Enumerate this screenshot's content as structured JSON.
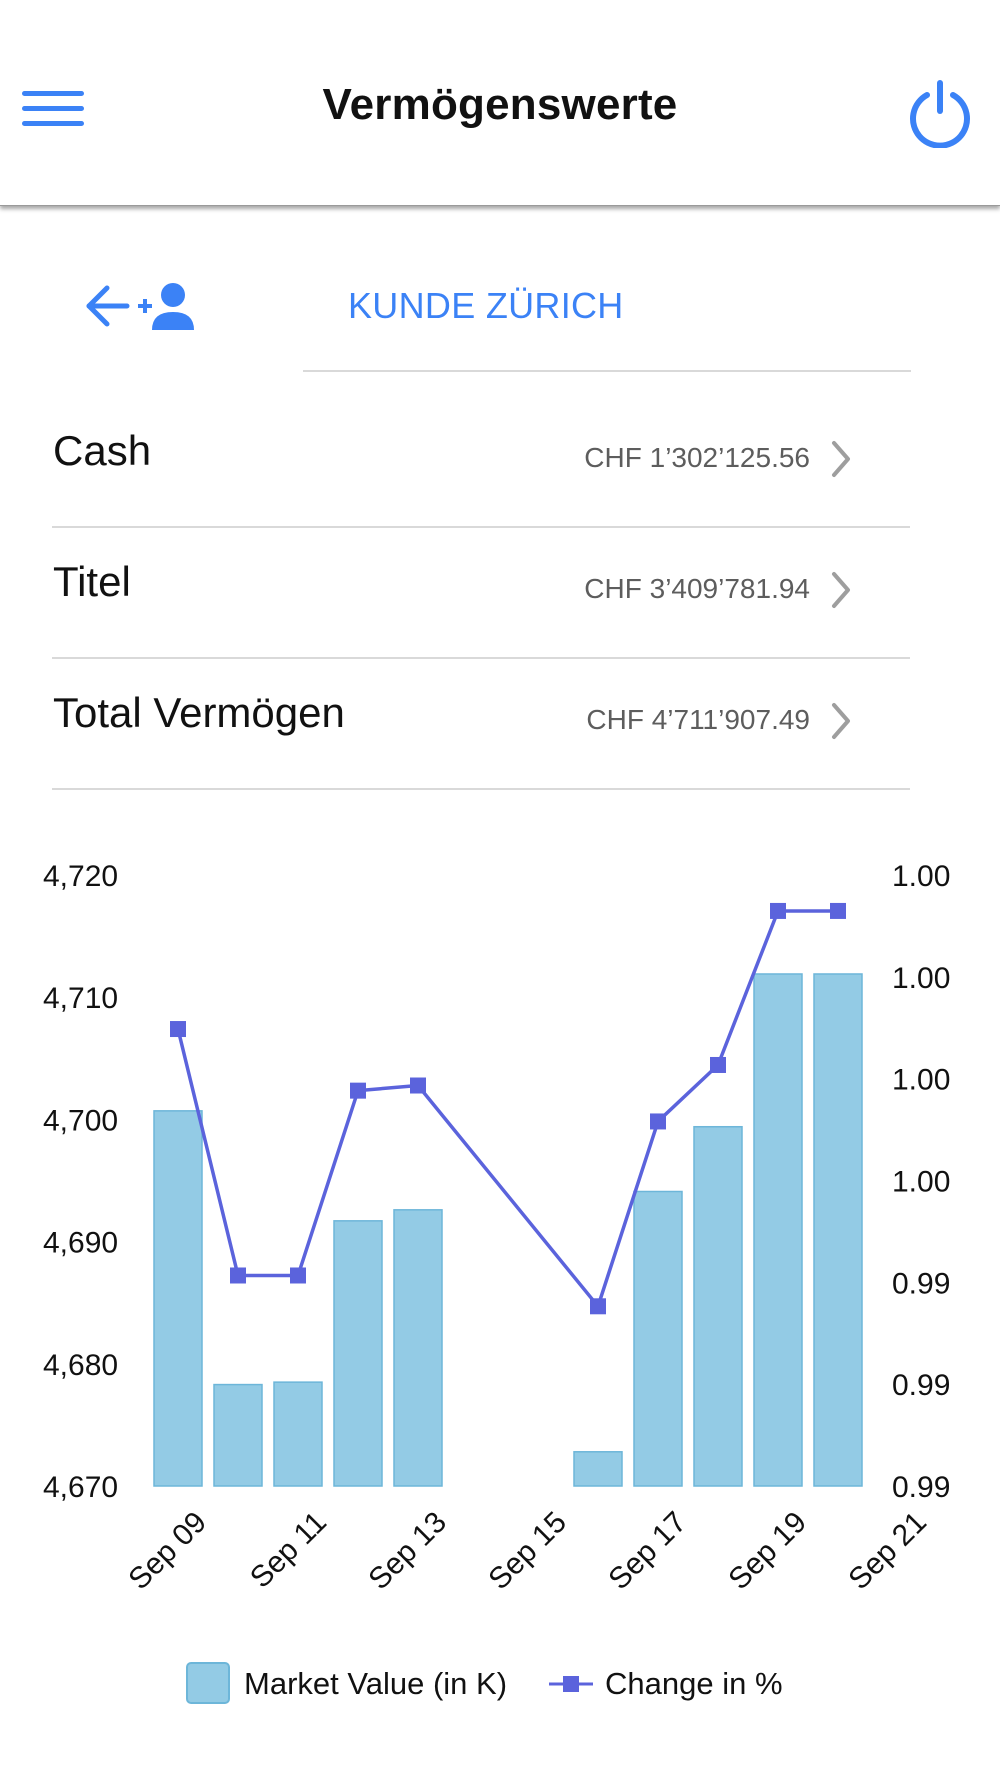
{
  "header": {
    "title": "Vermögenswerte"
  },
  "client": {
    "name": "KUNDE ZÜRICH"
  },
  "accounts": [
    {
      "label": "Cash",
      "value": "CHF 1’302’125.56"
    },
    {
      "label": "Titel",
      "value": "CHF 3’409’781.94"
    },
    {
      "label": "Total Vermögen",
      "value": "CHF 4’711’907.49"
    }
  ],
  "colors": {
    "accent": "#3b82f6",
    "bar_fill": "#93cbe5",
    "bar_stroke": "#6db6d9",
    "line": "#5b63dc"
  },
  "icons": {
    "menu": "hamburger-menu-icon",
    "power": "power-icon",
    "back": "arrow-left-icon",
    "add_user": "add-user-icon",
    "chevron": "chevron-right-icon"
  },
  "chart_data": {
    "type": "bar",
    "title": "",
    "x_tick_labels": [
      "Sep 09",
      "Sep 11",
      "Sep 13",
      "Sep 15",
      "Sep 17",
      "Sep 19",
      "Sep 21"
    ],
    "y_left": {
      "min": 4670,
      "max": 4720,
      "tick_labels": [
        "4,720",
        "4,710",
        "4,700",
        "4,690",
        "4,680",
        "4,670"
      ]
    },
    "y_right": {
      "tick_labels": [
        "1.00",
        "1.00",
        "1.00",
        "1.00",
        "0.99",
        "0.99",
        "0.99"
      ]
    },
    "legend": {
      "position": "bottom"
    },
    "series": [
      {
        "name": "Market Value (in K)",
        "type": "bar",
        "x": [
          "Sep 09",
          "Sep 10",
          "Sep 11",
          "Sep 12",
          "Sep 13",
          "Sep 16",
          "Sep 17",
          "Sep 18",
          "Sep 19",
          "Sep 20"
        ],
        "values": [
          4700.7,
          4678.3,
          4678.5,
          4691.7,
          4692.6,
          4672.8,
          4694.1,
          4699.4,
          4711.9,
          4711.9
        ]
      },
      {
        "name": "Change in %",
        "type": "line",
        "x": [
          "Sep 09",
          "Sep 10",
          "Sep 11",
          "Sep 12",
          "Sep 13",
          "Sep 16",
          "Sep 17",
          "Sep 18",
          "Sep 19",
          "Sep 20"
        ],
        "values": [
          0.9977,
          0.9929,
          0.9929,
          0.9965,
          0.9966,
          0.9923,
          0.9959,
          0.997,
          1.0,
          1.0
        ],
        "y_range": [
          0.9888,
          1.0007
        ]
      }
    ]
  }
}
